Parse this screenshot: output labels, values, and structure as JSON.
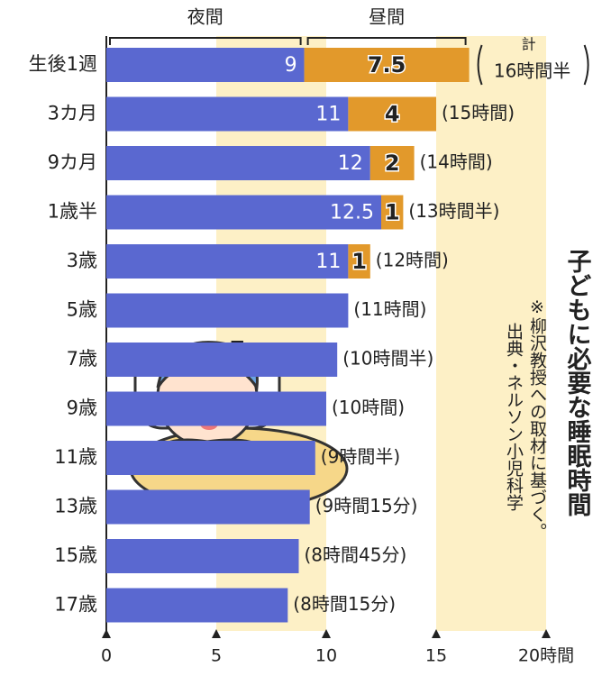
{
  "chart_data": {
    "type": "stacked-barh",
    "title": "子どもに必要な睡眠時間",
    "notes": [
      "※柳沢教授への取材に基づく。",
      "出典・ネルソン小児科学"
    ],
    "categories": [
      "生後1週",
      "3カ月",
      "9カ月",
      "1歳半",
      "3歳",
      "5歳",
      "7歳",
      "9歳",
      "11歳",
      "13歳",
      "15歳",
      "17歳"
    ],
    "series": [
      {
        "name": "夜間",
        "color": "#5a68d0",
        "values": [
          9,
          11,
          12,
          12.5,
          11,
          11,
          10.5,
          10,
          9.5,
          9.25,
          8.75,
          8.25
        ]
      },
      {
        "name": "昼間",
        "color": "#e2992b",
        "values": [
          7.5,
          4,
          2,
          1,
          1,
          null,
          null,
          null,
          null,
          null,
          null,
          null
        ]
      }
    ],
    "total_prefix": "計",
    "total_labels": [
      "16時間半",
      "(15時間)",
      "(14時間)",
      "(13時間半)",
      "(12時間)",
      "(11時間)",
      "(10時間半)",
      "(10時間)",
      "(9時間半)",
      "(9時間15分)",
      "(8時間45分)",
      "(8時間15分)"
    ],
    "xlim": [
      0,
      20
    ],
    "xticks": [
      0,
      5,
      10,
      15,
      {
        "value": 20,
        "label": "20時間"
      }
    ]
  }
}
